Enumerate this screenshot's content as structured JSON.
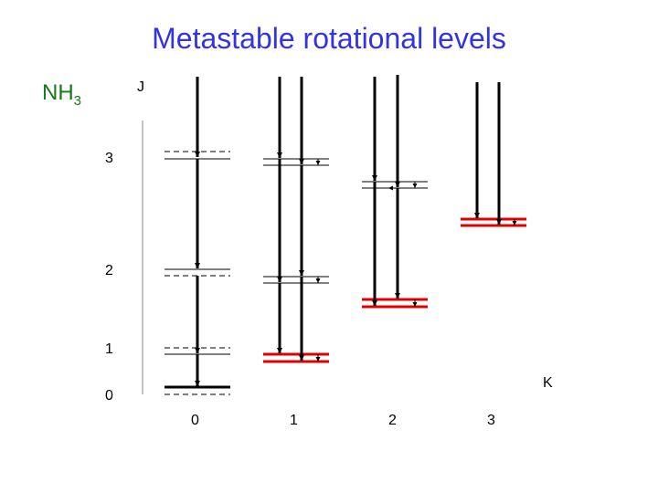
{
  "title": "Metastable rotational levels",
  "molecule": {
    "base": "NH",
    "subscript": "3"
  },
  "j_axis": {
    "label": "J",
    "ticks": [
      "3",
      "2",
      "1",
      "0"
    ]
  },
  "k_axis": {
    "label": "K",
    "ticks": [
      "0",
      "1",
      "2",
      "3"
    ]
  },
  "colors": {
    "title": "#3333e6",
    "molecule": "#177a17",
    "metastable": "#e00000",
    "level": "#000000"
  },
  "columns": [
    {
      "k": 0,
      "levels": [
        3,
        2,
        1
      ],
      "metastable_level": 0
    },
    {
      "k": 1,
      "levels": [
        3,
        2
      ],
      "metastable_level": 1
    },
    {
      "k": 2,
      "levels": [
        3
      ],
      "metastable_level": 2
    },
    {
      "k": 3,
      "levels": [],
      "metastable_level": 3
    }
  ]
}
